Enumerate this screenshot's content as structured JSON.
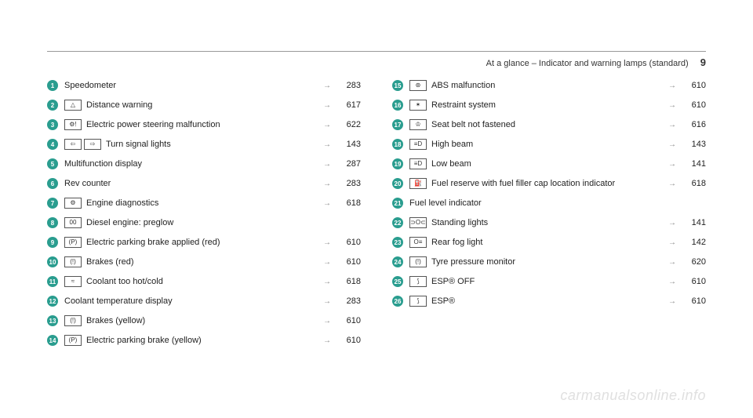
{
  "header": {
    "title": "At a glance – Indicator and warning lamps (standard)",
    "page": "9"
  },
  "left": [
    {
      "n": "1",
      "icons": [],
      "label": "Speedometer",
      "arrow": true,
      "page": "283"
    },
    {
      "n": "2",
      "icons": [
        "△"
      ],
      "label": "Distance warning",
      "arrow": true,
      "page": "617"
    },
    {
      "n": "3",
      "icons": [
        "⚙!"
      ],
      "label": "Electric power steering malfunction",
      "arrow": true,
      "page": "622"
    },
    {
      "n": "4",
      "icons": [
        "⇦",
        "⇨"
      ],
      "label": "Turn signal lights",
      "arrow": true,
      "page": "143"
    },
    {
      "n": "5",
      "icons": [],
      "label": "Multifunction display",
      "arrow": true,
      "page": "287"
    },
    {
      "n": "6",
      "icons": [],
      "label": "Rev counter",
      "arrow": true,
      "page": "283"
    },
    {
      "n": "7",
      "icons": [
        "⚙"
      ],
      "label": "Engine diagnostics",
      "arrow": true,
      "page": "618"
    },
    {
      "n": "8",
      "icons": [
        "00"
      ],
      "label": "Diesel engine: preglow",
      "arrow": false,
      "page": ""
    },
    {
      "n": "9",
      "icons": [
        "(P)"
      ],
      "label": "Electric parking brake applied (red)",
      "arrow": true,
      "page": "610"
    },
    {
      "n": "10",
      "icons": [
        "(!)"
      ],
      "label": "Brakes (red)",
      "arrow": true,
      "page": "610"
    },
    {
      "n": "11",
      "icons": [
        "≈"
      ],
      "label": "Coolant too hot/cold",
      "arrow": true,
      "page": "618"
    },
    {
      "n": "12",
      "icons": [],
      "label": "Coolant temperature display",
      "arrow": true,
      "page": "283"
    },
    {
      "n": "13",
      "icons": [
        "(!)"
      ],
      "label": "Brakes (yellow)",
      "arrow": true,
      "page": "610"
    },
    {
      "n": "14",
      "icons": [
        "(P)"
      ],
      "label": "Electric parking brake (yellow)",
      "arrow": true,
      "page": "610"
    }
  ],
  "right": [
    {
      "n": "15",
      "icons": [
        "⊛"
      ],
      "label": "ABS malfunction",
      "arrow": true,
      "page": "610"
    },
    {
      "n": "16",
      "icons": [
        "✶"
      ],
      "label": "Restraint system",
      "arrow": true,
      "page": "610"
    },
    {
      "n": "17",
      "icons": [
        "♔"
      ],
      "label": "Seat belt not fastened",
      "arrow": true,
      "page": "616"
    },
    {
      "n": "18",
      "icons": [
        "≡D"
      ],
      "label": "High beam",
      "arrow": true,
      "page": "143"
    },
    {
      "n": "19",
      "icons": [
        "≡D"
      ],
      "label": "Low beam",
      "arrow": true,
      "page": "141"
    },
    {
      "n": "20",
      "icons": [
        "⛽"
      ],
      "label": "Fuel reserve with fuel filler cap location indicator",
      "arrow": true,
      "page": "618"
    },
    {
      "n": "21",
      "icons": [],
      "label": "Fuel level indicator",
      "arrow": false,
      "page": ""
    },
    {
      "n": "22",
      "icons": [
        "⊃O⊂"
      ],
      "label": "Standing lights",
      "arrow": true,
      "page": "141"
    },
    {
      "n": "23",
      "icons": [
        "O≡"
      ],
      "label": "Rear fog light",
      "arrow": true,
      "page": "142"
    },
    {
      "n": "24",
      "icons": [
        "(!)"
      ],
      "label": "Tyre pressure monitor",
      "arrow": true,
      "page": "620"
    },
    {
      "n": "25",
      "icons": [
        "⟆"
      ],
      "label": "ESP® OFF",
      "arrow": true,
      "page": "610"
    },
    {
      "n": "26",
      "icons": [
        "⟆"
      ],
      "label": "ESP®",
      "arrow": true,
      "page": "610"
    }
  ],
  "watermark": "carmanualsonline.info"
}
